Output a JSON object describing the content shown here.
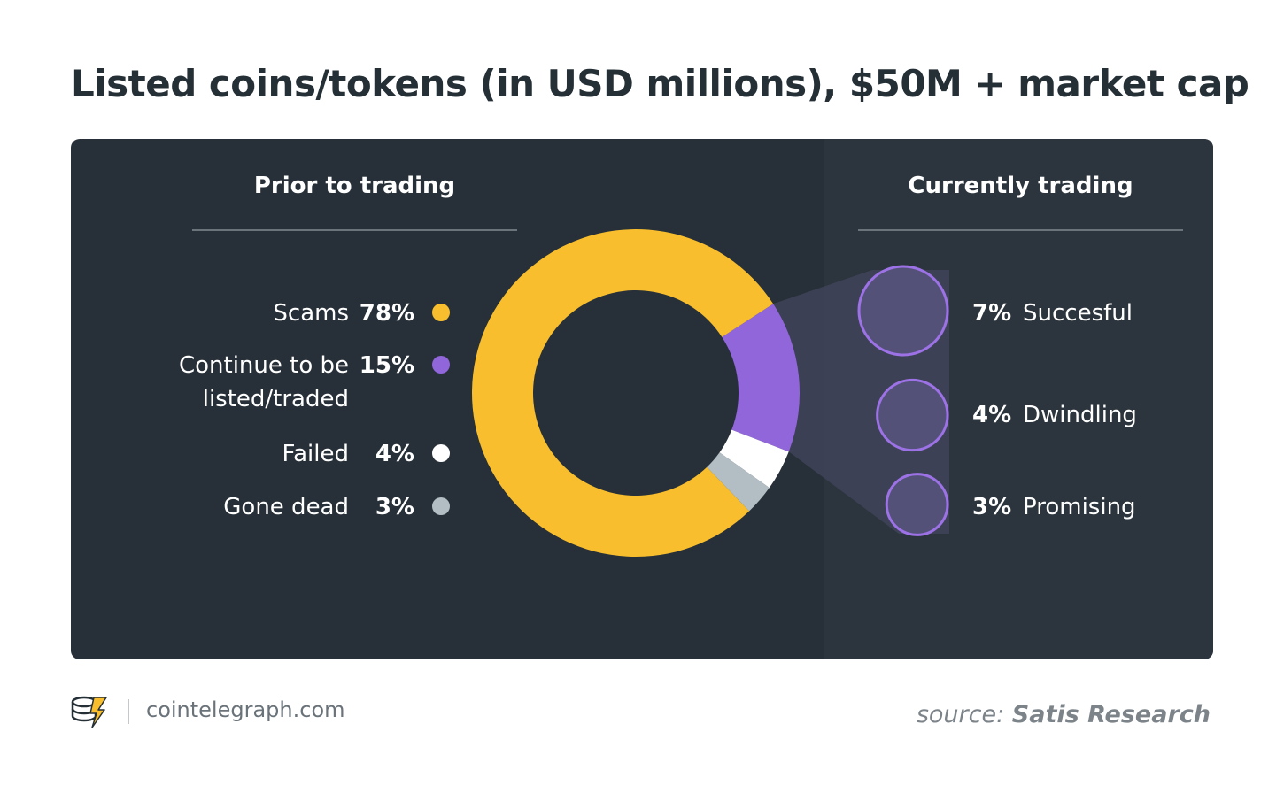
{
  "title": "Listed coins/tokens (in USD millions), $50M + market cap",
  "left_header": "Prior to trading",
  "right_header": "Currently trading",
  "footer": {
    "site": "cointelegraph.com",
    "source_prefix": "source:",
    "source_name": "Satis Research"
  },
  "colors": {
    "background": "#273038",
    "scams": "#f8be2d",
    "continue": "#9166da",
    "failed": "#ffffff",
    "gone_dead": "#b3bec4",
    "bubble_fill": "#545178",
    "bubble_stroke": "#9c72e6"
  },
  "chart_data": [
    {
      "type": "pie",
      "subtype": "donut",
      "title": "Prior to trading",
      "slices": [
        {
          "label": "Scams",
          "value": 78,
          "display": "78%",
          "color": "#f8be2d"
        },
        {
          "label": "Continue to be listed/traded",
          "label_lines": [
            "Continue to be",
            "listed/traded"
          ],
          "value": 15,
          "display": "15%",
          "color": "#9166da"
        },
        {
          "label": "Failed",
          "value": 4,
          "display": "4%",
          "color": "#ffffff"
        },
        {
          "label": "Gone dead",
          "value": 3,
          "display": "3%",
          "color": "#b3bec4"
        }
      ],
      "legend_position": "left"
    },
    {
      "type": "bubble",
      "title": "Currently trading",
      "breakdown_of": "Continue to be listed/traded",
      "items": [
        {
          "label": "Succesful",
          "value": 7,
          "display": "7%"
        },
        {
          "label": "Dwindling",
          "value": 4,
          "display": "4%"
        },
        {
          "label": "Promising",
          "value": 3,
          "display": "3%"
        }
      ]
    }
  ]
}
